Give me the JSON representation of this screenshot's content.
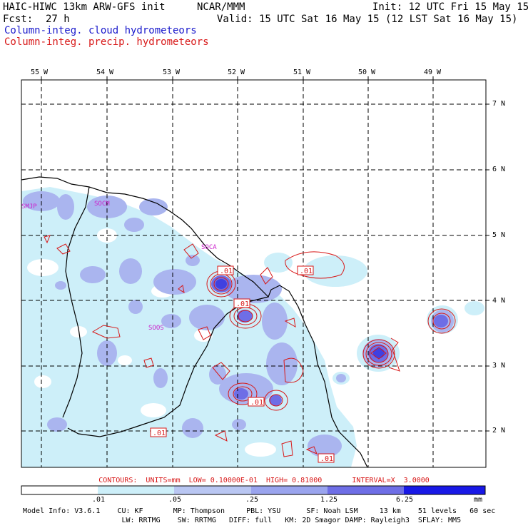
{
  "header": {
    "model_title": "HAIC-HIWC 13km ARW-GFS init",
    "org": "NCAR/MMM",
    "init": "Init: 12 UTC Fri 15 May 15",
    "fcst_label": "Fcst:",
    "fcst_value": "27 h",
    "valid": "Valid: 15 UTC Sat 16 May 15 (12 LST Sat 16 May 15)",
    "field1": "Column-integ. cloud hydrometeors",
    "field2": "Column-integ. precip. hydrometeors",
    "field1_color": "#1a1acc",
    "field2_color": "#d81818"
  },
  "axes": {
    "lon_labels": [
      "55 W",
      "54 W",
      "53 W",
      "52 W",
      "51 W",
      "50 W",
      "49 W"
    ],
    "lat_labels": [
      "7 N",
      "6 N",
      "5 N",
      "4 N",
      "3 N",
      "2 N"
    ]
  },
  "stations": [
    "SMJP",
    "SOCA",
    "SOOS",
    "SOCM"
  ],
  "contour_labels": [
    ".01",
    ".01",
    ".01",
    ".01",
    ".01",
    ".01",
    ".01"
  ],
  "contours_info": "CONTOURS:  UNITS=mm  LOW= 0.10000E-01  HIGH= 0.81000       INTERVAL=X  3.0000",
  "colorbar": {
    "ticks": [
      ".01",
      ".05",
      ".25",
      "1.25",
      "6.25"
    ],
    "unit": "mm",
    "colors": [
      "#ffffff",
      "#cdeff9",
      "#b9c6f2",
      "#9aa4ee",
      "#6e6ee6",
      "#4040e0",
      "#1818e6"
    ]
  },
  "model_info": {
    "line1": "Model Info: V3.6.1    CU: KF       MP: Thompson     PBL: YSU      SF: Noah LSM     13 km    51 levels   60 sec",
    "line2": "                       LW: RRTMG    SW: RRTMG   DIFF: full   KM: 2D Smagor DAMP: Rayleigh3  SFLAY: MM5"
  }
}
